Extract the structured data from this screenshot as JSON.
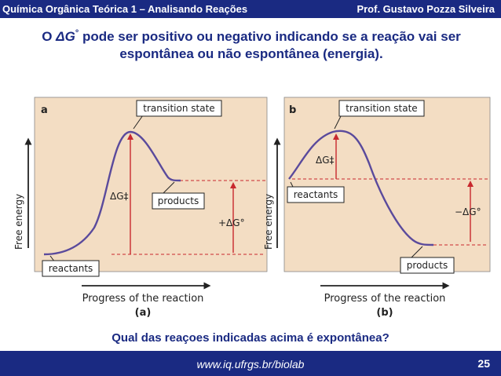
{
  "header": {
    "course": "Química Orgânica Teórica 1 – Analisando Reações",
    "author": "Prof. Gustavo Pozza Silveira"
  },
  "heading": {
    "prefix": "O ",
    "symbol": "ΔG",
    "degree": "°",
    "rest": " pode ser positivo ou negativo indicando se a reação vai ser espontânea ou não espontânea (energia)."
  },
  "figure": {
    "panel_a": {
      "letter": "a",
      "transition_label": "transition state",
      "dg_act_label": "ΔG‡",
      "products_label": "products",
      "reactants_label": "reactants",
      "dg_label": "+ΔG°",
      "xlabel": "Progress of the reaction",
      "ylabel": "Free energy",
      "caption": "(a)"
    },
    "panel_b": {
      "letter": "b",
      "transition_label": "transition state",
      "dg_act_label": "ΔG‡",
      "reactants_label": "reactants",
      "products_label": "products",
      "dg_label": "−ΔG°",
      "xlabel": "Progress of the reaction",
      "ylabel": "Free energy",
      "caption": "(b)"
    },
    "colors": {
      "background": "#f3ddc3",
      "curve": "#5a4a9c",
      "arrow_red": "#c8282e"
    }
  },
  "question": "Qual das reaçoes indicadas acima é expontânea?",
  "footer": {
    "url": "www.iq.ufrgs.br/biolab",
    "page": "25"
  }
}
